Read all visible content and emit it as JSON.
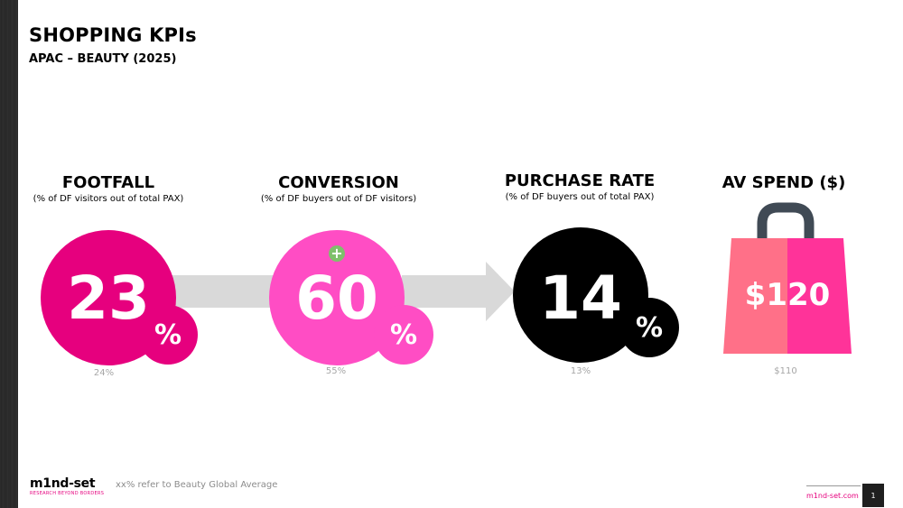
{
  "header": {
    "title": "SHOPPING KPIs",
    "subtitle": "APAC – BEAUTY (2025)"
  },
  "kpis": [
    {
      "title": "FOOTFALL",
      "subtitle": "(% of DF visitors out of total PAX)",
      "value": "23",
      "unit": "%",
      "benchmark": "24%",
      "color": "#e6007e"
    },
    {
      "title": "CONVERSION",
      "subtitle": "(% of DF buyers out of DF visitors)",
      "value": "60",
      "unit": "%",
      "benchmark": "55%",
      "color": "#ff4dc4",
      "indicator": "+"
    },
    {
      "title": "PURCHASE RATE",
      "subtitle": "(% of DF buyers out of total PAX)",
      "value": "14",
      "unit": "%",
      "benchmark": "13%",
      "color": "#000000"
    },
    {
      "title": "AV SPEND ($)",
      "subtitle": "",
      "value": "$120",
      "unit": "",
      "benchmark": "$110",
      "colors": [
        "#ff7088",
        "#ff3399"
      ]
    }
  ],
  "footer": {
    "logo": "m1nd-set",
    "logo_tagline": "RESEARCH BEYOND BORDERS",
    "note": "xx% refer to Beauty Global Average",
    "site": "m1nd-set.com",
    "page": "1"
  }
}
